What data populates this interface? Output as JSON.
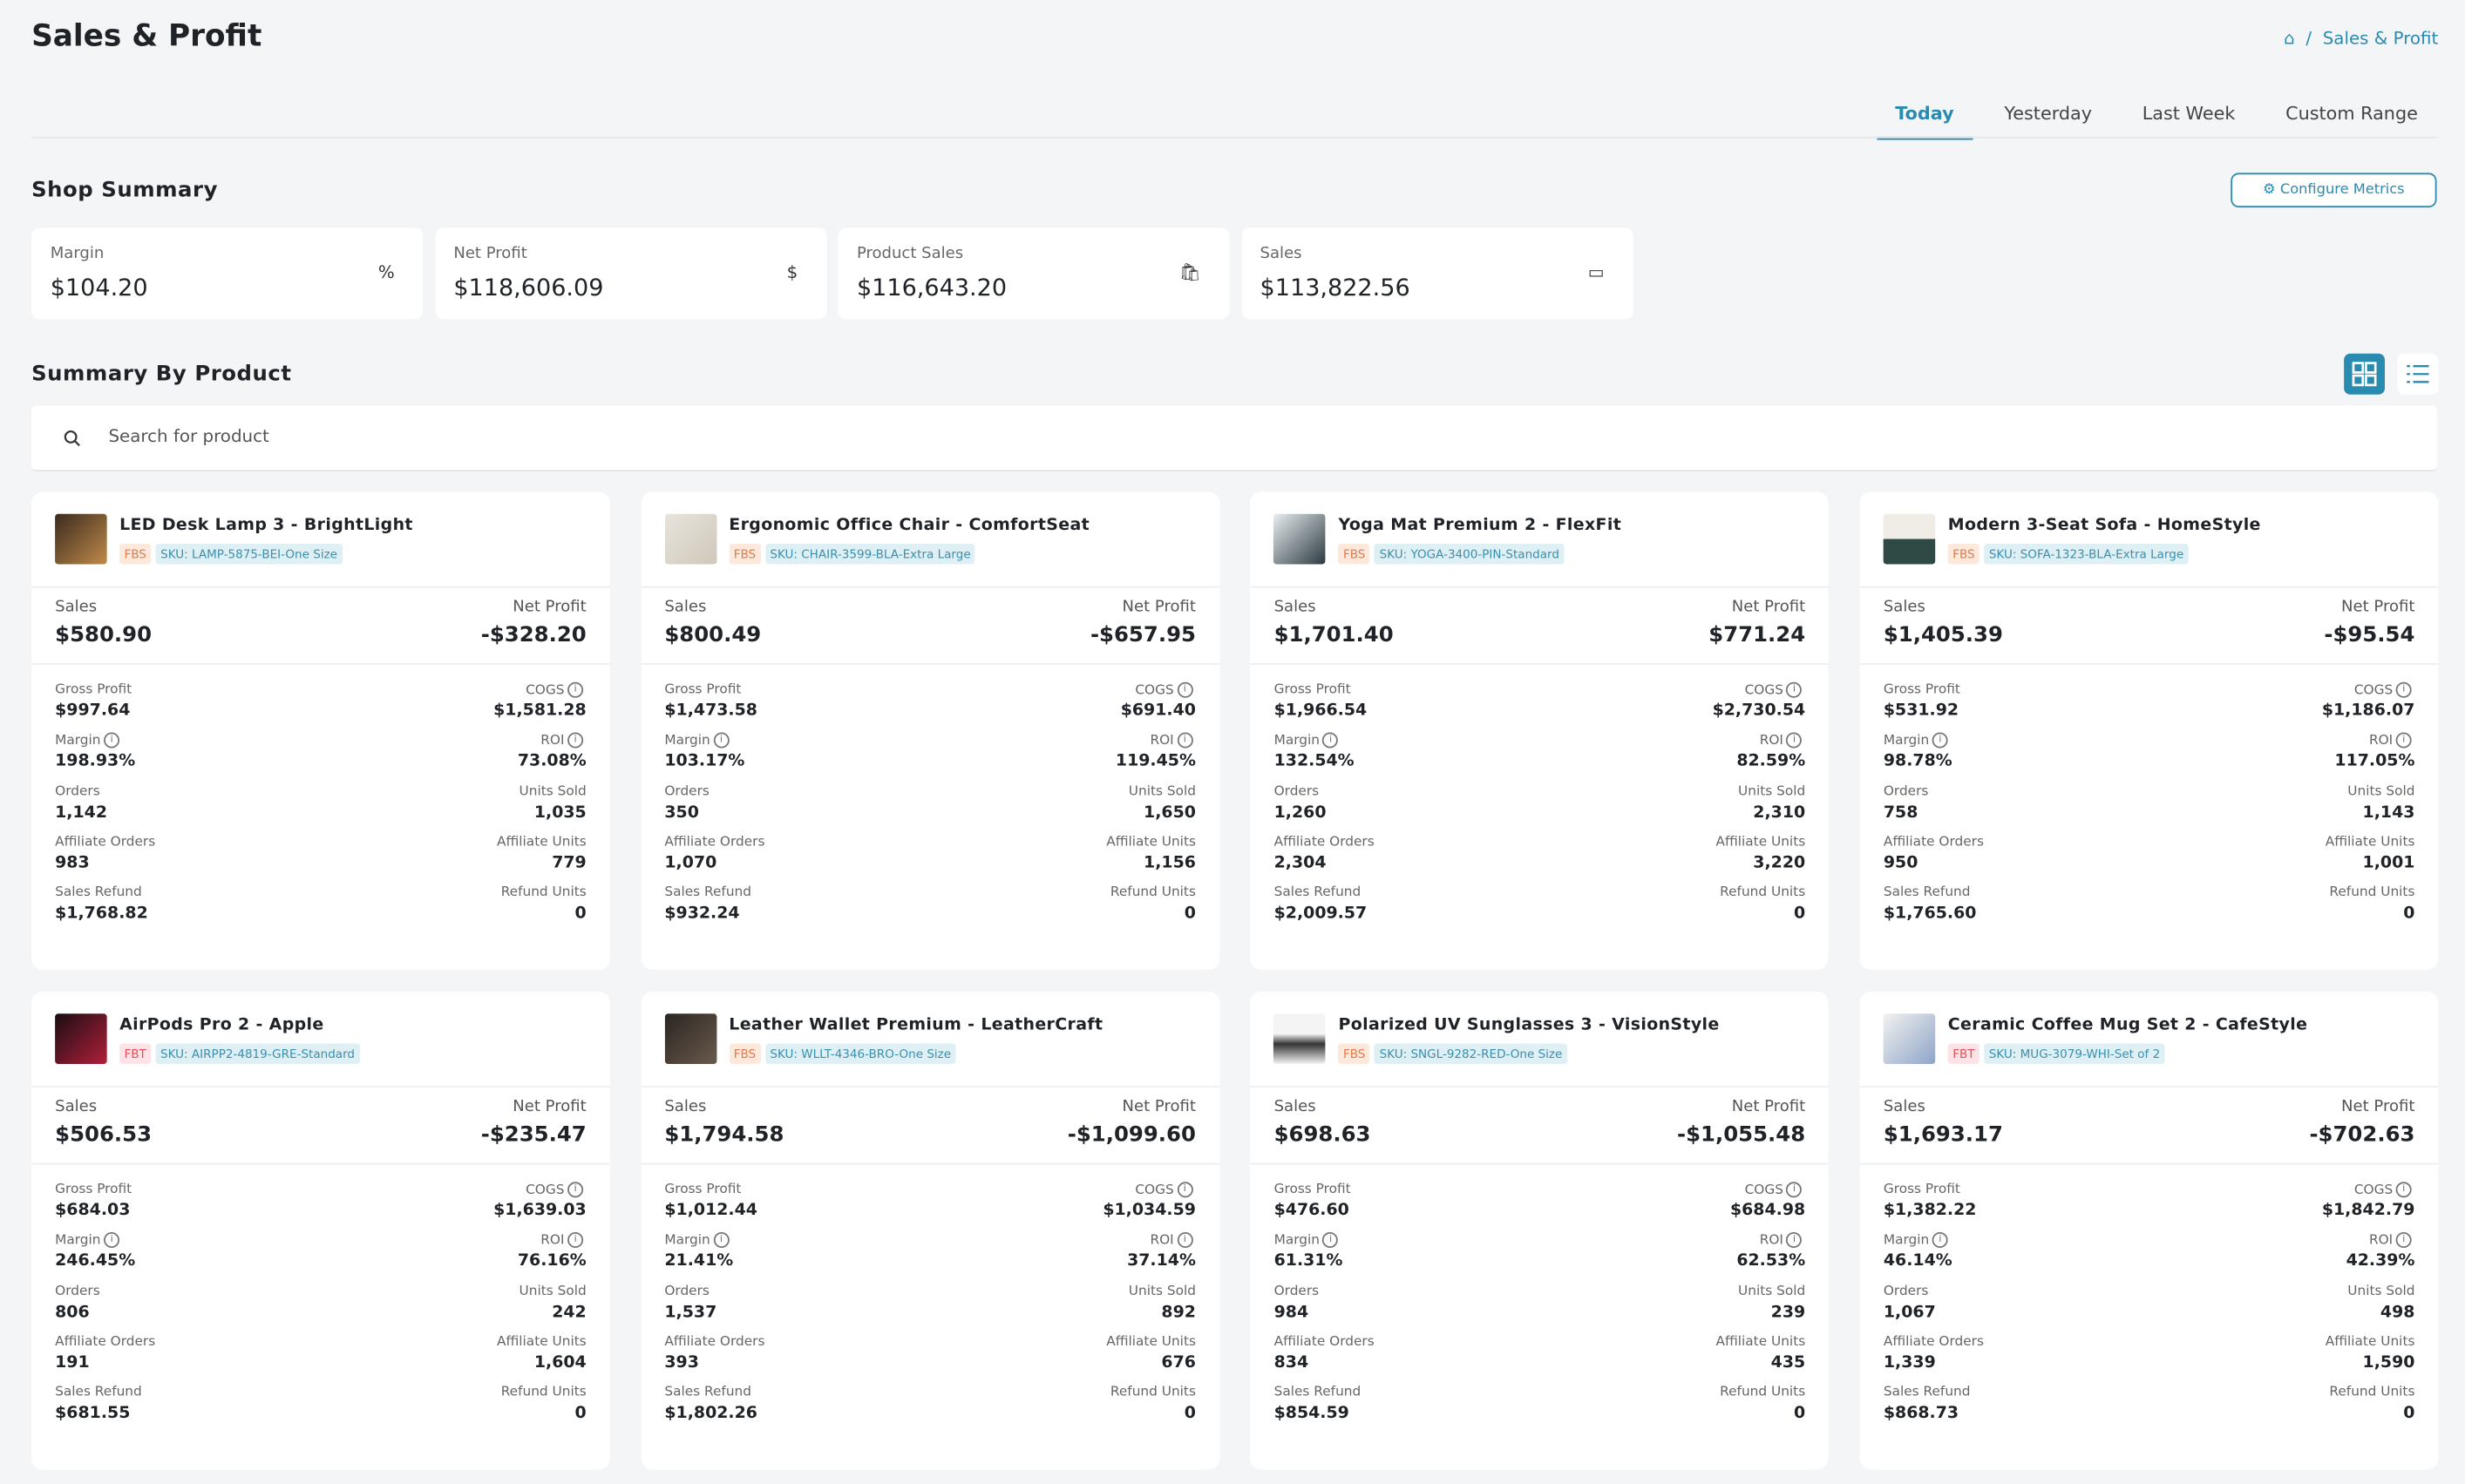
{
  "header": {
    "title": "Sales & Profit",
    "breadcrumb": "Sales & Profit"
  },
  "tabs": [
    "Today",
    "Yesterday",
    "Last Week",
    "Custom Range"
  ],
  "shop_summary": {
    "title": "Shop Summary",
    "button": "Configure Metrics",
    "metrics": [
      {
        "label": "Margin",
        "value": "$104.20"
      },
      {
        "label": "Net Profit",
        "value": "$118,606.09"
      },
      {
        "label": "Product Sales",
        "value": "$116,643.20"
      },
      {
        "label": "Sales",
        "value": "$113,822.56"
      }
    ]
  },
  "product_summary": {
    "title": "Summary By Product",
    "search_placeholder": "Search for product",
    "top_labels": [
      "Sales",
      "Net Profit"
    ],
    "field_labels": [
      "Gross Profit",
      "COGS",
      "Margin",
      "ROI",
      "Orders",
      "Units Sold",
      "Affiliate Orders",
      "Affiliate Units",
      "Sales Refund",
      "Refund Units"
    ],
    "products": [
      {
        "name": "LED Desk Lamp 3 - BrightLight",
        "badge": "FBS",
        "sku": "SKU: LAMP-5875-BEI-One Size",
        "sales": "$580.90",
        "net_profit": "-$328.20",
        "fields": [
          "$997.64",
          "$1,581.28",
          "198.93%",
          "73.08%",
          "1,142",
          "1,035",
          "983",
          "779",
          "$1,768.82",
          "0"
        ]
      },
      {
        "name": "Ergonomic Office Chair - ComfortSeat",
        "badge": "FBS",
        "sku": "SKU: CHAIR-3599-BLA-Extra Large",
        "sales": "$800.49",
        "net_profit": "-$657.95",
        "fields": [
          "$1,473.58",
          "$691.40",
          "103.17%",
          "119.45%",
          "350",
          "1,650",
          "1,070",
          "1,156",
          "$932.24",
          "0"
        ]
      },
      {
        "name": "Yoga Mat Premium 2 - FlexFit",
        "badge": "FBS",
        "sku": "SKU: YOGA-3400-PIN-Standard",
        "sales": "$1,701.40",
        "net_profit": "$771.24",
        "fields": [
          "$1,966.54",
          "$2,730.54",
          "132.54%",
          "82.59%",
          "1,260",
          "2,310",
          "2,304",
          "3,220",
          "$2,009.57",
          "0"
        ]
      },
      {
        "name": "Modern 3-Seat Sofa - HomeStyle",
        "badge": "FBS",
        "sku": "SKU: SOFA-1323-BLA-Extra Large",
        "sales": "$1,405.39",
        "net_profit": "-$95.54",
        "fields": [
          "$531.92",
          "$1,186.07",
          "98.78%",
          "117.05%",
          "758",
          "1,143",
          "950",
          "1,001",
          "$1,765.60",
          "0"
        ]
      },
      {
        "name": "AirPods Pro 2 - Apple",
        "badge": "FBT",
        "sku": "SKU: AIRPP2-4819-GRE-Standard",
        "sales": "$506.53",
        "net_profit": "-$235.47",
        "fields": [
          "$684.03",
          "$1,639.03",
          "246.45%",
          "76.16%",
          "806",
          "242",
          "191",
          "1,604",
          "$681.55",
          "0"
        ]
      },
      {
        "name": "Leather Wallet Premium - LeatherCraft",
        "badge": "FBS",
        "sku": "SKU: WLLT-4346-BRO-One Size",
        "sales": "$1,794.58",
        "net_profit": "-$1,099.60",
        "fields": [
          "$1,012.44",
          "$1,034.59",
          "21.41%",
          "37.14%",
          "1,537",
          "892",
          "393",
          "676",
          "$1,802.26",
          "0"
        ]
      },
      {
        "name": "Polarized UV Sunglasses 3 - VisionStyle",
        "badge": "FBS",
        "sku": "SKU: SNGL-9282-RED-One Size",
        "sales": "$698.63",
        "net_profit": "-$1,055.48",
        "fields": [
          "$476.60",
          "$684.98",
          "61.31%",
          "62.53%",
          "984",
          "239",
          "834",
          "435",
          "$854.59",
          "0"
        ]
      },
      {
        "name": "Ceramic Coffee Mug Set 2 - CafeStyle",
        "badge": "FBT",
        "sku": "SKU: MUG-3079-WHI-Set of 2",
        "sales": "$1,693.17",
        "net_profit": "-$702.63",
        "fields": [
          "$1,382.22",
          "$1,842.79",
          "46.14%",
          "42.39%",
          "1,067",
          "498",
          "1,339",
          "1,590",
          "$868.73",
          "0"
        ]
      }
    ]
  }
}
